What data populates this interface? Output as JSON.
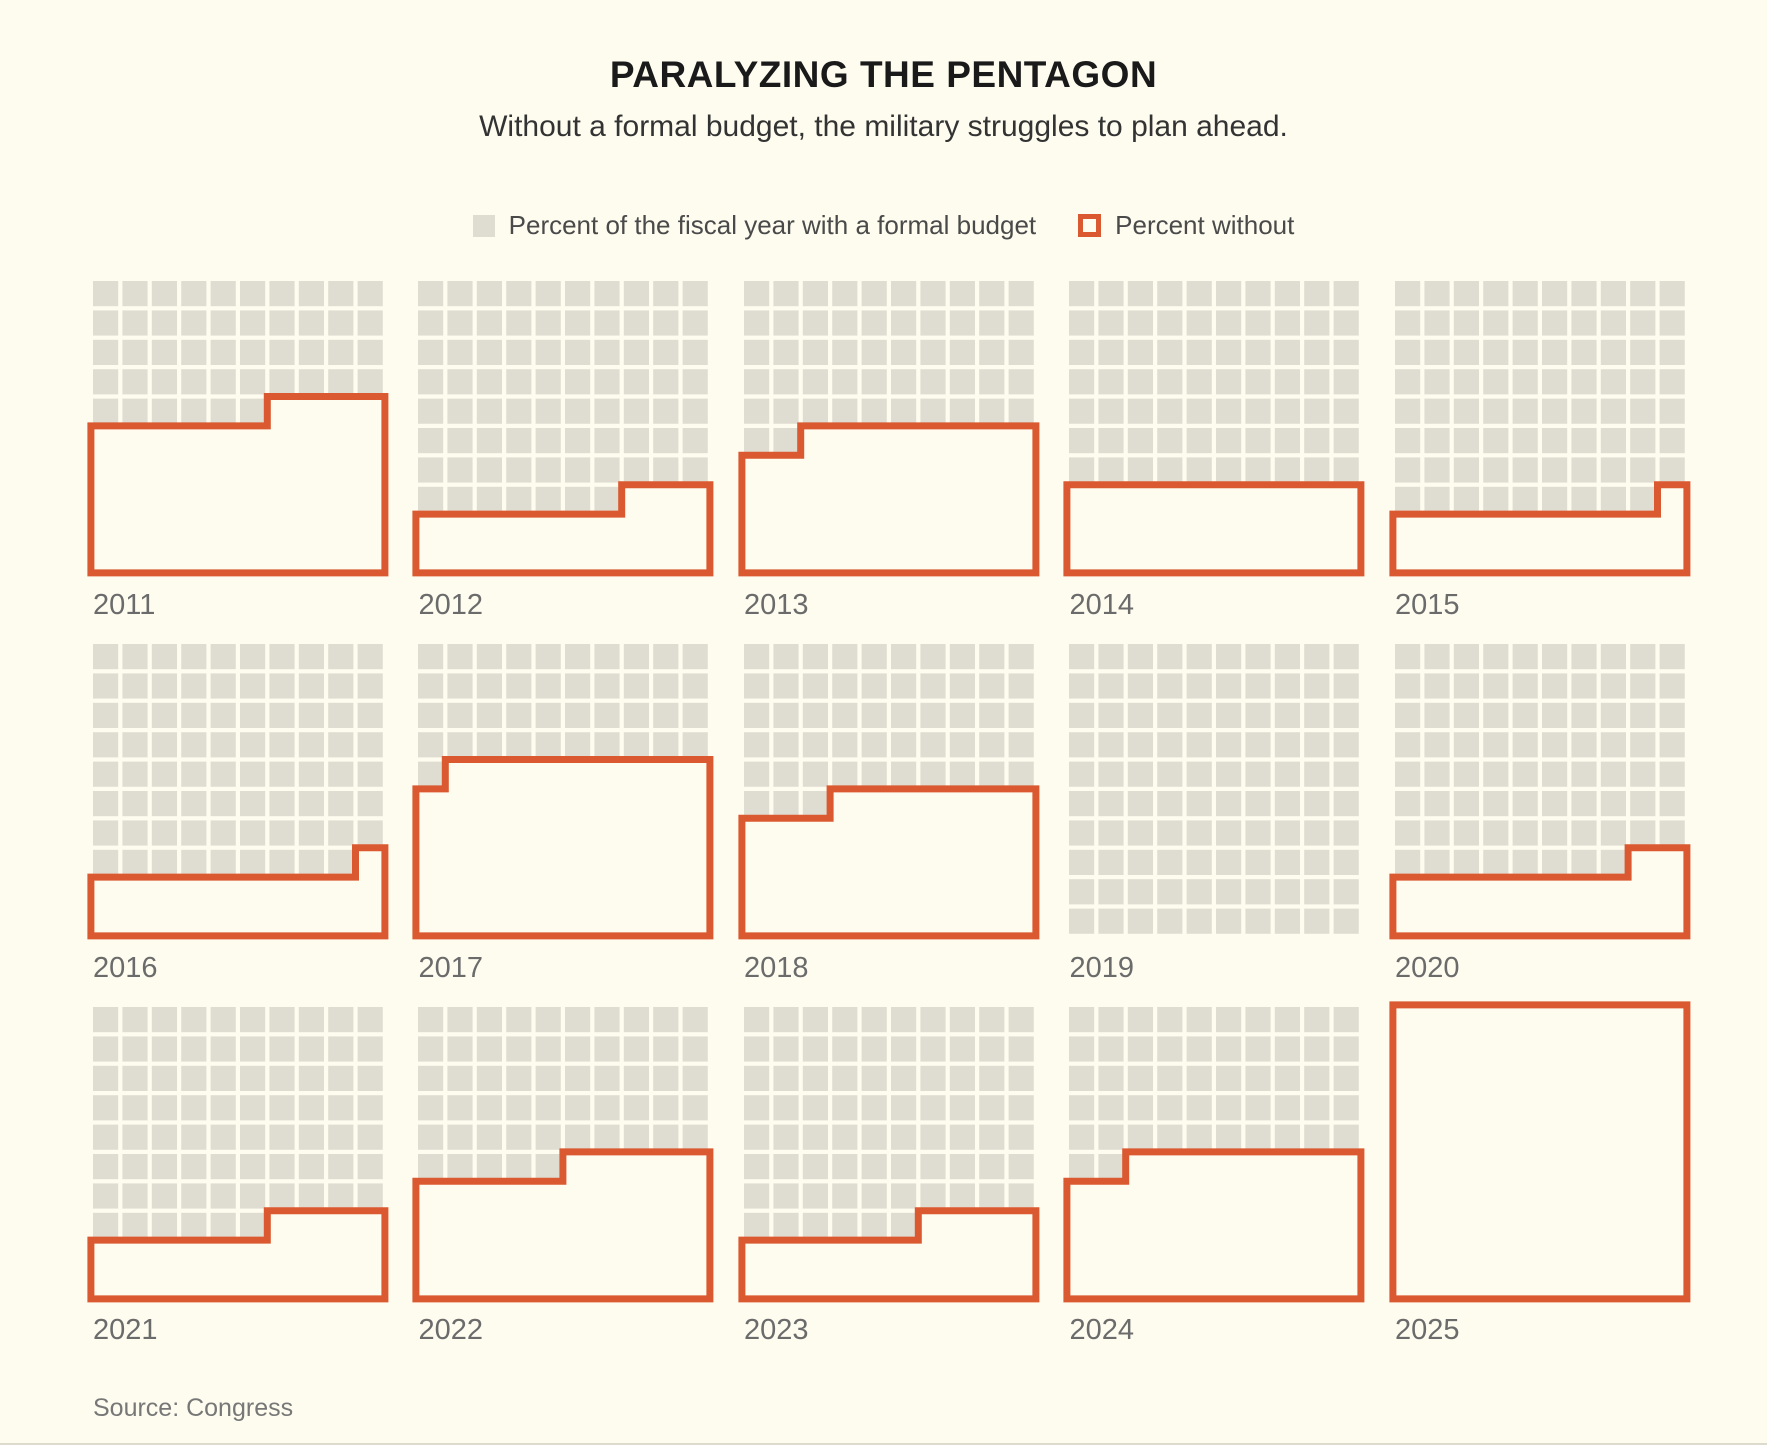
{
  "title": "PARALYZING THE PENTAGON",
  "subtitle": "Without a formal budget, the military struggles to plan ahead.",
  "legend": {
    "with_budget_label": "Percent of the fiscal year with a formal budget",
    "without_budget_label": "Percent without"
  },
  "source": "Source: Congress",
  "colors": {
    "background": "#FEFCEF",
    "square_gray": "#DFDDD2",
    "orange": "#DB5931",
    "title_text": "#1A1A1A",
    "subtitle_text": "#333333",
    "legend_text": "#4A4A4A",
    "year_label_text": "#6B6B6B",
    "source_text": "#777777"
  },
  "chart_data": {
    "type": "heatmap",
    "subtype": "waffle-grid",
    "unit": "percent of fiscal year",
    "grid": {
      "rows": 10,
      "cols": 10,
      "cell_percent": 1
    },
    "fill_convention": "percent-without outlined region fills full rows from the bottom; the remainder fills the next row from the right side",
    "years": [
      {
        "year": "2011",
        "percent_without": 54,
        "percent_with_budget": 46
      },
      {
        "year": "2012",
        "percent_without": 23,
        "percent_with_budget": 77
      },
      {
        "year": "2013",
        "percent_without": 48,
        "percent_with_budget": 52
      },
      {
        "year": "2014",
        "percent_without": 30,
        "percent_with_budget": 70
      },
      {
        "year": "2015",
        "percent_without": 21,
        "percent_with_budget": 79
      },
      {
        "year": "2016",
        "percent_without": 21,
        "percent_with_budget": 79
      },
      {
        "year": "2017",
        "percent_without": 59,
        "percent_with_budget": 41
      },
      {
        "year": "2018",
        "percent_without": 47,
        "percent_with_budget": 53
      },
      {
        "year": "2019",
        "percent_without": 0,
        "percent_with_budget": 100
      },
      {
        "year": "2020",
        "percent_without": 22,
        "percent_with_budget": 78
      },
      {
        "year": "2021",
        "percent_without": 24,
        "percent_with_budget": 76
      },
      {
        "year": "2022",
        "percent_without": 45,
        "percent_with_budget": 55
      },
      {
        "year": "2023",
        "percent_without": 24,
        "percent_with_budget": 76
      },
      {
        "year": "2024",
        "percent_without": 48,
        "percent_with_budget": 52
      },
      {
        "year": "2025",
        "percent_without": 100,
        "percent_with_budget": 0
      }
    ]
  }
}
